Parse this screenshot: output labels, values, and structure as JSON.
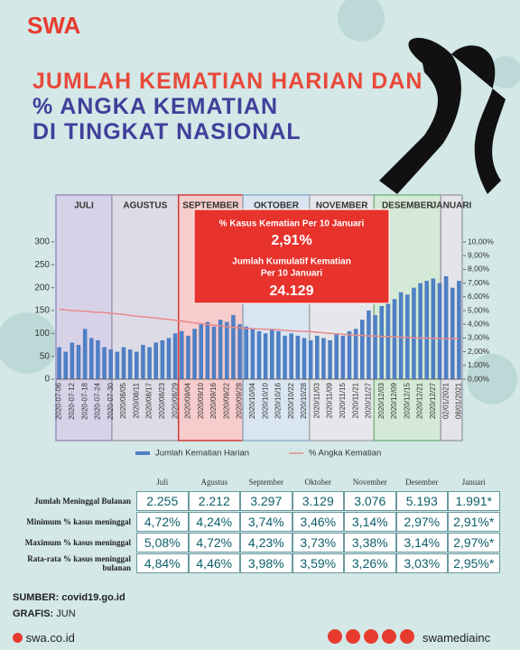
{
  "header": {
    "logo": "SWA",
    "title_lines": [
      "JUMLAH KEMATIAN HARIAN DAN",
      "% ANGKA KEMATIAN",
      "DI TINGKAT NASIONAL"
    ]
  },
  "chart_data": {
    "type": "bar-line",
    "months": [
      "JULI",
      "AGUSTUS",
      "SEPTEMBER",
      "OKTOBER",
      "NOVEMBER",
      "DESEMBER",
      "JANUARI"
    ],
    "categories": [
      "2020-07-06",
      null,
      "2020-07-12",
      null,
      "2020-07-18",
      null,
      "2020-07-24",
      null,
      "2020-07-30",
      null,
      "2020/08/05",
      null,
      "2020/08/11",
      null,
      "2020/08/17",
      null,
      "2020/08/23",
      null,
      "2020/08/29",
      null,
      "2020/09/04",
      null,
      "2020/09/10",
      null,
      "2020/09/16",
      null,
      "2020/09/22",
      null,
      "2020/09/28",
      null,
      "2020/10/04",
      null,
      "2020/10/10",
      null,
      "2020/10/16",
      null,
      "2020/10/22",
      null,
      "2020/10/28",
      null,
      "2020/11/03",
      null,
      "2020/11/09",
      null,
      "2020/11/15",
      null,
      "2020/11/21",
      null,
      "2020/11/27",
      null,
      "2020/12/03",
      null,
      "2020/12/09",
      null,
      "2020/12/15",
      null,
      "2020/12/21",
      null,
      "2020/12/27",
      null,
      "02/01/2021",
      null,
      "08/01/2021"
    ],
    "series": [
      {
        "name": "Jumlah Kematian Harian",
        "color": "#4f7fc4",
        "values": [
          70,
          60,
          80,
          75,
          110,
          90,
          85,
          70,
          65,
          60,
          70,
          65,
          60,
          75,
          70,
          80,
          85,
          90,
          100,
          105,
          95,
          110,
          120,
          125,
          115,
          130,
          125,
          140,
          120,
          115,
          110,
          105,
          100,
          110,
          105,
          95,
          100,
          95,
          90,
          85,
          95,
          90,
          85,
          100,
          95,
          105,
          110,
          130,
          150,
          140,
          160,
          165,
          175,
          190,
          185,
          200,
          210,
          215,
          220,
          210,
          225,
          200,
          215
        ]
      },
      {
        "name": "% Angka Kematian",
        "color": "#e88a8a",
        "axis": "y2",
        "values": [
          5.1,
          5.05,
          5.0,
          4.98,
          4.95,
          4.9,
          4.88,
          4.85,
          4.8,
          4.76,
          4.72,
          4.65,
          4.6,
          4.55,
          4.5,
          4.46,
          4.4,
          4.35,
          4.3,
          4.23,
          4.17,
          4.1,
          4.05,
          3.98,
          3.93,
          3.88,
          3.83,
          3.78,
          3.74,
          3.7,
          3.68,
          3.66,
          3.64,
          3.62,
          3.6,
          3.56,
          3.52,
          3.5,
          3.48,
          3.46,
          3.42,
          3.38,
          3.34,
          3.3,
          3.27,
          3.24,
          3.2,
          3.18,
          3.15,
          3.14,
          3.12,
          3.1,
          3.08,
          3.06,
          3.04,
          3.02,
          3.0,
          2.99,
          2.98,
          2.97,
          2.96,
          2.95,
          2.94
        ]
      }
    ],
    "ylim": [
      0,
      300
    ],
    "yticks": [
      0,
      50,
      100,
      150,
      200,
      250,
      300
    ],
    "y2lim": [
      0,
      10
    ],
    "y2ticks": [
      {
        "value": 0,
        "label": "0,00%"
      },
      {
        "value": 1,
        "label": "1,00%"
      },
      {
        "value": 2,
        "label": "2,00%"
      },
      {
        "value": 3,
        "label": "3,00%"
      },
      {
        "value": 4,
        "label": "4,00%"
      },
      {
        "value": 5,
        "label": "5,00%"
      },
      {
        "value": 6,
        "label": "6,00%"
      },
      {
        "value": 7,
        "label": "7,00%"
      },
      {
        "value": 8,
        "label": "8,00%"
      },
      {
        "value": 9,
        "label": "9,00%"
      },
      {
        "value": 10,
        "label": "10,00%"
      }
    ],
    "grid": false,
    "legend": "bottom",
    "annotation": {
      "label1": "% Kasus Kematian Per 10 Januari",
      "value1": "2,91%",
      "label2_lines": [
        "Jumlah Kumulatif Kematian",
        "Per 10 Januari"
      ],
      "value2": "24.129"
    }
  },
  "table": {
    "header": [
      "Juli",
      "Agustus",
      "September",
      "Oktober",
      "November",
      "Desember",
      "Januari"
    ],
    "rows": [
      [
        "Jumlah Meninggal Bulanan",
        "2.255",
        "2.212",
        "3.297",
        "3.129",
        "3.076",
        "5.193",
        "1.991*"
      ],
      [
        "Minimum % kasus meninggal",
        "4,72%",
        "4,24%",
        "3,74%",
        "3,46%",
        "3,14%",
        "2,97%",
        "2,91%*"
      ],
      [
        "Maximum % kasus meninggal",
        "5,08%",
        "4,72%",
        "4,23%",
        "3,73%",
        "3,38%",
        "3,14%",
        "2,97%*"
      ],
      [
        "Rata-rata % kasus meninggal bulanan",
        "4,84%",
        "4,46%",
        "3,98%",
        "3,59%",
        "3,26%",
        "3,03%",
        "2,95%*"
      ]
    ]
  },
  "footer": {
    "source_label": "SUMBER:",
    "source": "covid19.go.id",
    "graphic_label": "GRAFIS:",
    "graphic": "JUN",
    "website": "swa.co.id",
    "social": "swamediainc"
  }
}
